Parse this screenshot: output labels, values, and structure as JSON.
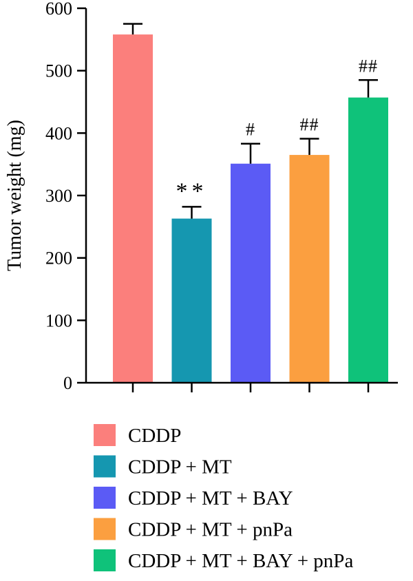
{
  "chart_data": {
    "type": "bar",
    "title": "",
    "xlabel": "",
    "ylabel": "Tumor weight (mg)",
    "ylim": [
      0,
      600
    ],
    "yticks": [
      0,
      100,
      200,
      300,
      400,
      500,
      600
    ],
    "categories": [
      "CDDP",
      "CDDP + MT",
      "CDDP + MT + BAY",
      "CDDP + MT + pnPa",
      "CDDP + MT + BAY + pnPa"
    ],
    "values": [
      558,
      263,
      351,
      365,
      457
    ],
    "errors": [
      17,
      19,
      32,
      26,
      28
    ],
    "significance": [
      "",
      "**",
      "#",
      "##",
      "##"
    ],
    "colors": [
      "#fb7f7c",
      "#1597b0",
      "#5b5bf5",
      "#fb9f40",
      "#0fc27a"
    ],
    "grid": false,
    "legend_position": "bottom"
  }
}
